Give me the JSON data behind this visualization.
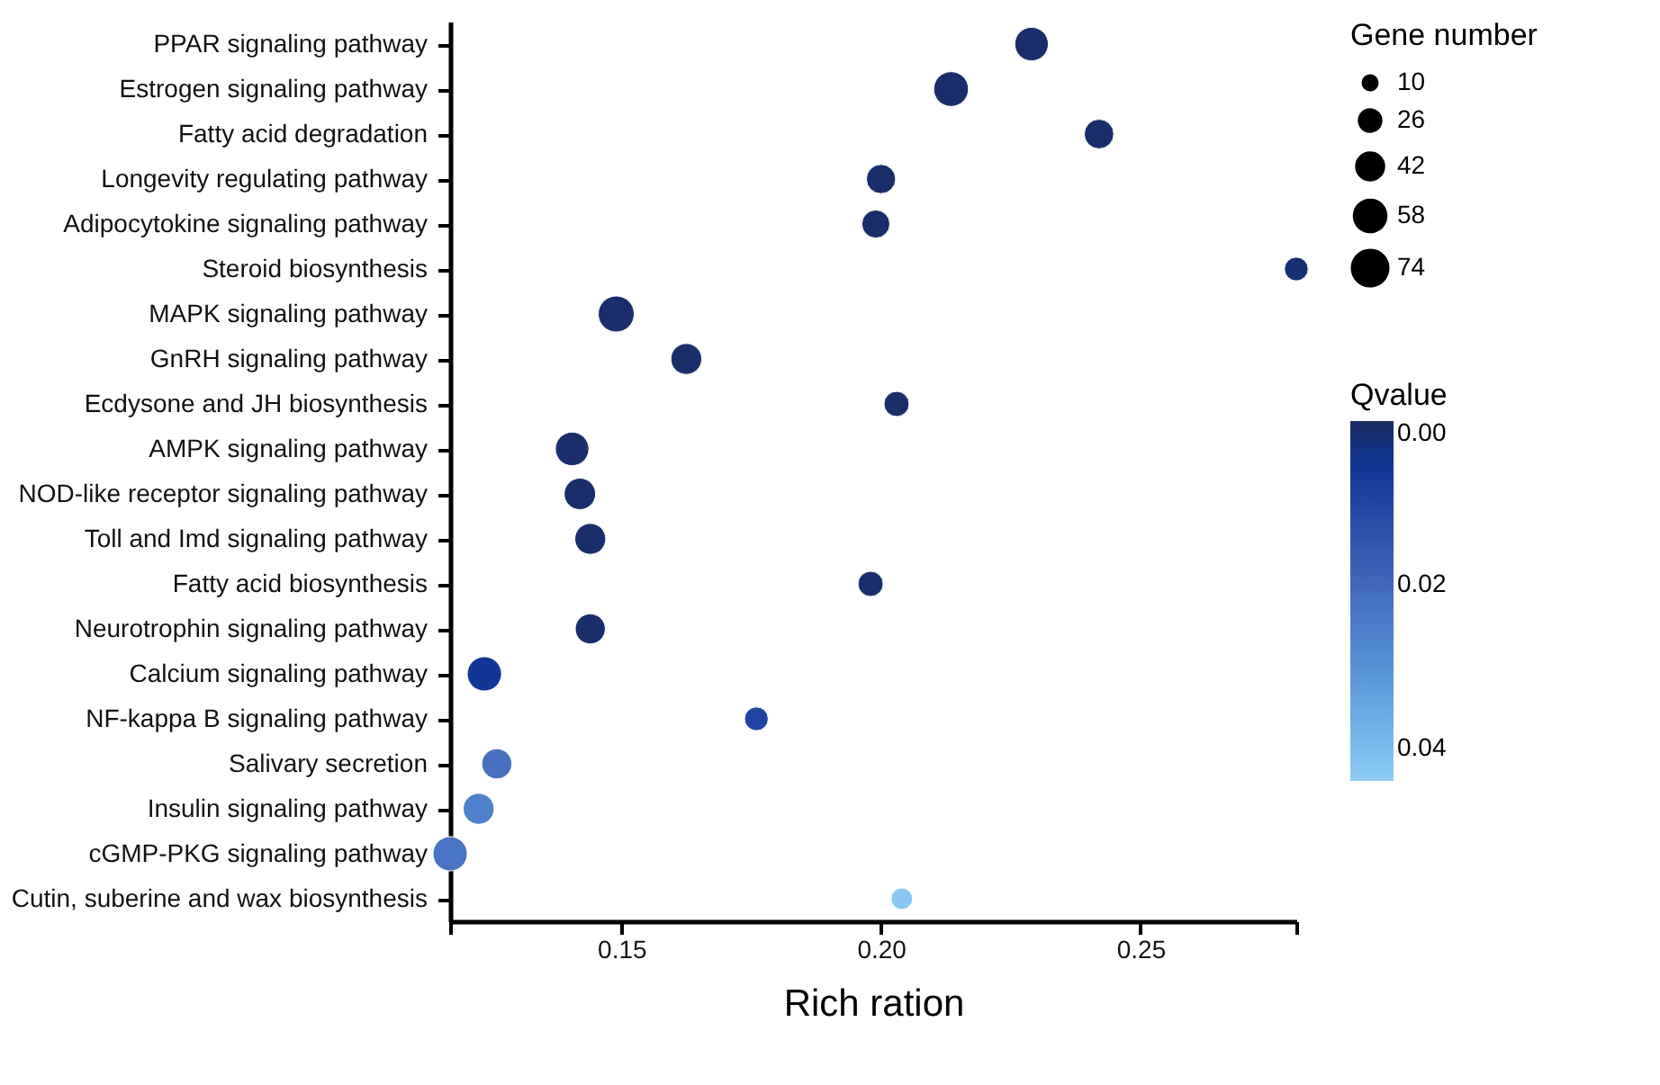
{
  "chart_data": {
    "type": "bubble",
    "xlabel": "Rich ration",
    "legend_title": "Gene number",
    "clabel": "Qvalue",
    "categories": [
      "PPAR signaling pathway",
      "Estrogen signaling pathway",
      "Fatty acid degradation",
      "Longevity regulating pathway",
      "Adipocytokine signaling pathway",
      "Steroid biosynthesis",
      "MAPK signaling pathway",
      "GnRH signaling pathway",
      "Ecdysone and JH biosynthesis ",
      "AMPK signaling pathway",
      "NOD-like receptor signaling pathway",
      "Toll and Imd signaling pathway",
      "Fatty acid biosynthesis",
      "Neurotrophin signaling pathway",
      "Calcium signaling pathway",
      "NF-kappa B signaling pathway",
      "Salivary secretion",
      "Insulin signaling pathway",
      "cGMP-PKG signaling pathway",
      "Cutin, suberine and wax biosynthesis"
    ],
    "values": [
      0.229,
      0.2135,
      0.242,
      0.2,
      0.199,
      0.28,
      0.149,
      0.1625,
      0.203,
      0.1405,
      0.142,
      0.144,
      0.198,
      0.144,
      0.1236,
      0.176,
      0.126,
      0.1225,
      0.117,
      0.204
    ],
    "sizes": [
      64,
      69,
      49,
      48,
      44,
      31,
      74,
      54,
      35,
      64,
      56,
      54,
      35,
      51,
      67,
      31,
      51,
      54,
      67,
      25
    ],
    "size_legend": [
      10,
      26,
      42,
      58,
      74
    ],
    "cvalues": [
      0.001,
      0.001,
      0.001,
      0.001,
      0.001,
      0.002,
      0.001,
      0.001,
      0.001,
      0.001,
      0.001,
      0.001,
      0.001,
      0.001,
      0.006,
      0.01,
      0.022,
      0.026,
      0.023,
      0.043
    ],
    "clim": [
      0,
      0.044
    ],
    "cticks": [
      {
        "value": 0,
        "label": "0.00"
      },
      {
        "value": 0.02,
        "label": "0.02"
      },
      {
        "value": 0.04,
        "label": "0.04"
      }
    ],
    "xlim": [
      0.117,
      0.28
    ],
    "xticks": [
      {
        "value": 0.117,
        "label": null
      },
      0.15,
      {
        "value": 0.2,
        "label": "0.20"
      },
      0.25,
      {
        "value": 0.28,
        "label": null
      }
    ],
    "orientation": "horizontal",
    "grid": false
  }
}
